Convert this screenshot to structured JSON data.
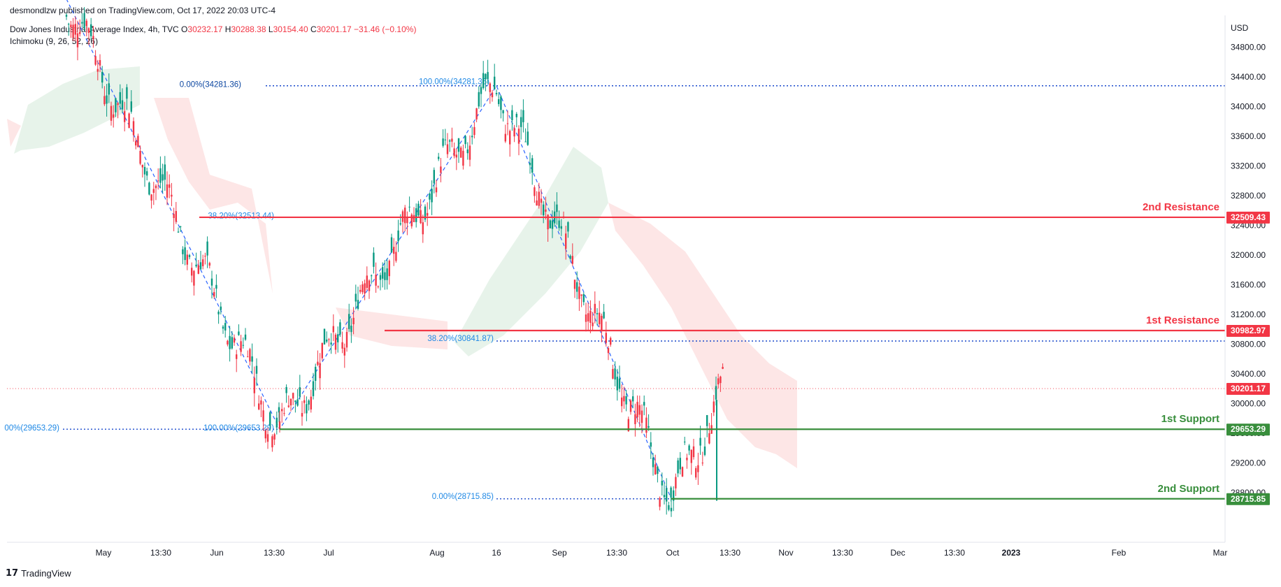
{
  "header": {
    "publisher": "desmondlzw published on TradingView.com, Oct 17, 2022 20:03 UTC-4",
    "instrument": "Dow Jones Industrial Average Index, 4h, TVC",
    "open_label": "O",
    "open": "30232.17",
    "high_label": "H",
    "high": "30288.38",
    "low_label": "L",
    "low": "30154.40",
    "close_label": "C",
    "close": "30201.17",
    "change": "−31.46 (−0.10%)",
    "indicator": "Ichimoku (9, 26, 52, 26)"
  },
  "footer": {
    "brand": "TradingView",
    "logo_glyph": "17"
  },
  "colors": {
    "up": "#089981",
    "down": "#f23645",
    "resistance": "#f23645",
    "support": "#388e3c",
    "fib": "#2962ff",
    "fib_text": "#1e88e5",
    "cloud_bull": "#e7f3ea",
    "cloud_bear": "#fde6e6"
  },
  "chart_data": {
    "type": "candlestick",
    "title": "Dow Jones Industrial Average Index, 4h, TVC",
    "currency": "USD",
    "y_ticks": [
      28800,
      29200,
      29600,
      30000,
      30400,
      30800,
      31200,
      31600,
      32000,
      32400,
      32800,
      33200,
      33600,
      34000,
      34400,
      34800
    ],
    "y_tick_labels": [
      "28800.00",
      "29200.00",
      "29600.00",
      "30000.00",
      "30400.00",
      "30800.00",
      "31200.00",
      "31600.00",
      "32000.00",
      "32400.00",
      "32800.00",
      "33200.00",
      "33600.00",
      "34000.00",
      "34400.00",
      "34800.00"
    ],
    "ylim": [
      28130,
      35230
    ],
    "x_ticks": [
      "May",
      "13:30",
      "Jun",
      "13:30",
      "Jul",
      "Aug",
      "16",
      "Sep",
      "13:30",
      "Oct",
      "13:30",
      "Nov",
      "13:30",
      "Dec",
      "13:30",
      "2023",
      "Feb",
      "Mar"
    ],
    "pivots": [
      {
        "date": "Apr 21",
        "price": 35450
      },
      {
        "date": "Jun 17",
        "price": 29653.29
      },
      {
        "date": "Aug 16",
        "price": 34281.36
      },
      {
        "date": "Sep 30",
        "price": 28715.85
      },
      {
        "date": "Oct 17",
        "price": 30201.17
      }
    ],
    "levels": [
      {
        "name": "2nd Resistance",
        "value": 32509.43,
        "label": "32509.43",
        "kind": "resistance"
      },
      {
        "name": "1st Resistance",
        "value": 30982.97,
        "label": "30982.97",
        "kind": "resistance"
      },
      {
        "name": "1st Support",
        "value": 29653.29,
        "label": "29653.29",
        "kind": "support"
      },
      {
        "name": "2nd Support",
        "value": 28715.85,
        "label": "28715.85",
        "kind": "support"
      }
    ],
    "last_price": {
      "value": 30201.17,
      "label": "30201.17"
    },
    "fib_labels": [
      {
        "text": "0.00%(34281.36)",
        "value": 34281.36
      },
      {
        "text": "100.00%(34281.36)",
        "value": 34281.36
      },
      {
        "text": "38.20%(32513.44)",
        "value": 32513.44
      },
      {
        "text": "38.20%(30841.87)",
        "value": 30841.87
      },
      {
        "text": "00%(29653.29)",
        "value": 29653.29
      },
      {
        "text": "100.00%(29653.29)",
        "value": 29653.29
      },
      {
        "text": "0.00%(28715.85)",
        "value": 28715.85
      }
    ]
  }
}
